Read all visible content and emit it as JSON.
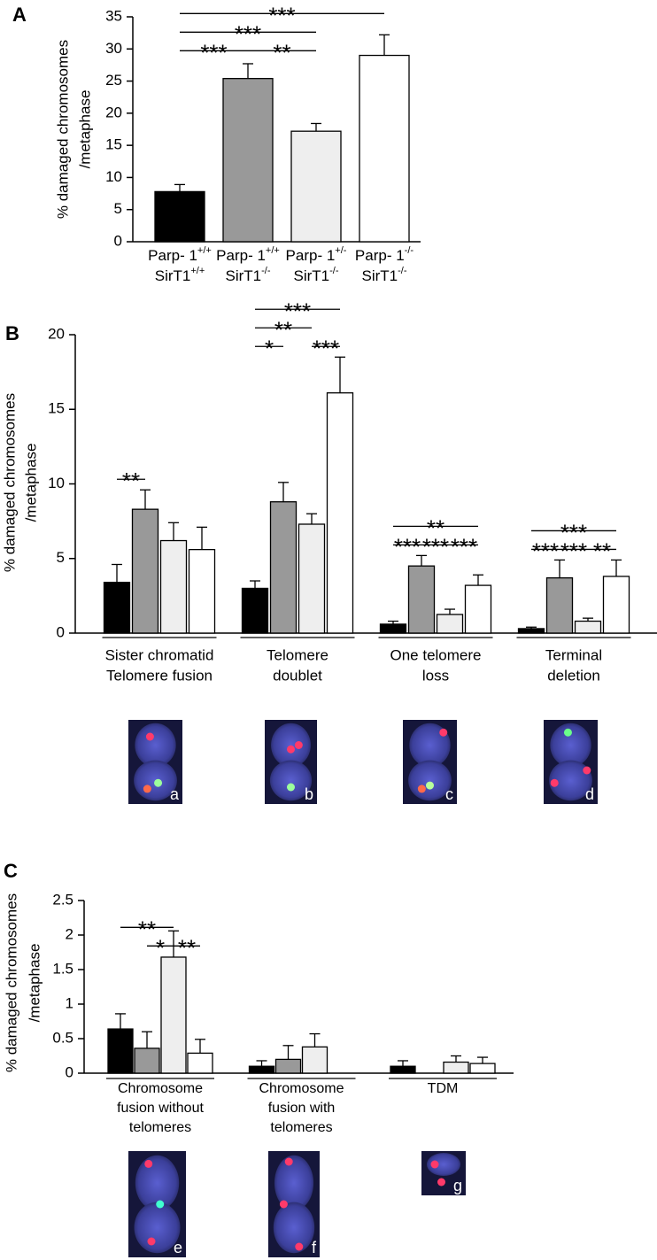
{
  "chart_data": [
    {
      "type": "bar",
      "panel": "A",
      "y_label": [
        "% damaged chromosomes",
        "/metaphase"
      ],
      "categories": [
        [
          {
            "text": "Parp- 1",
            "sup": "+/+"
          },
          {
            "text": "SirT1",
            "sup": "+/+"
          }
        ],
        [
          {
            "text": "Parp- 1",
            "sup": "+/+"
          },
          {
            "text": "SirT1",
            "sup": "-/-"
          }
        ],
        [
          {
            "text": "Parp- 1",
            "sup": "+/-"
          },
          {
            "text": "SirT1",
            "sup": "-/-"
          }
        ],
        [
          {
            "text": "Parp- 1",
            "sup": "-/-"
          },
          {
            "text": "SirT1",
            "sup": "-/-"
          }
        ]
      ],
      "values": [
        7.8,
        25.4,
        17.2,
        29.0
      ],
      "errors": [
        1.1,
        2.3,
        1.2,
        3.2
      ],
      "colors": [
        "#000000",
        "#999999",
        "#eeeeee",
        "#ffffff"
      ],
      "ylim": [
        0,
        35
      ],
      "yticks": [
        0,
        5,
        10,
        15,
        20,
        25,
        30,
        35
      ],
      "annotations": [
        {
          "text": "***",
          "from": 0,
          "to": 1
        },
        {
          "text": "**",
          "from": 1,
          "to": 2
        },
        {
          "text": "***",
          "from": 0,
          "to": 2
        },
        {
          "text": "***",
          "from": 0,
          "to": 3
        }
      ]
    },
    {
      "type": "grouped_bar",
      "panel": "B",
      "y_label": [
        "% damaged chromosomes",
        "/metaphase"
      ],
      "categories": [
        [
          "Sister chromatid",
          "Telomere fusion"
        ],
        [
          "Telomere",
          "doublet"
        ],
        [
          "One telomere",
          "loss"
        ],
        [
          "Terminal",
          "deletion"
        ]
      ],
      "series": [
        {
          "color": "#000000",
          "values": [
            3.4,
            3.0,
            0.6,
            0.3
          ],
          "errors": [
            1.2,
            0.5,
            0.2,
            0.1
          ]
        },
        {
          "color": "#999999",
          "values": [
            8.3,
            8.8,
            4.5,
            3.7
          ],
          "errors": [
            1.3,
            1.3,
            0.7,
            1.2
          ]
        },
        {
          "color": "#eeeeee",
          "values": [
            6.2,
            7.3,
            1.25,
            0.8
          ],
          "errors": [
            1.2,
            0.7,
            0.35,
            0.2
          ]
        },
        {
          "color": "#ffffff",
          "values": [
            5.6,
            16.1,
            3.2,
            3.8
          ],
          "errors": [
            1.5,
            2.4,
            0.7,
            1.1
          ]
        }
      ],
      "ylim": [
        0,
        20
      ],
      "yticks": [
        0,
        5,
        10,
        15,
        20
      ],
      "annotations": [
        {
          "text": "**",
          "group": 0,
          "from": 0,
          "to": 1
        },
        {
          "text": "*",
          "group": 1,
          "from": 0,
          "to": 1
        },
        {
          "text": "**",
          "group": 1,
          "from": 0,
          "to": 2
        },
        {
          "text": "***",
          "group": 1,
          "from": 2,
          "to": 3
        },
        {
          "text": "***",
          "group": 1,
          "from": 0,
          "to": 3
        },
        {
          "text": "***",
          "group": 2,
          "from": 0,
          "to": 1
        },
        {
          "text": "***",
          "group": 2,
          "from": 1,
          "to": 2
        },
        {
          "text": "***",
          "group": 2,
          "from": 2,
          "to": 3
        },
        {
          "text": "**",
          "group": 2,
          "from": 0,
          "to": 3
        },
        {
          "text": "***",
          "group": 3,
          "from": 0,
          "to": 1
        },
        {
          "text": "***",
          "group": 3,
          "from": 1,
          "to": 2
        },
        {
          "text": "**",
          "group": 3,
          "from": 2,
          "to": 3
        },
        {
          "text": "***",
          "group": 3,
          "from": 0,
          "to": 3
        }
      ],
      "image_labels": [
        "a",
        "b",
        "c",
        "d"
      ]
    },
    {
      "type": "grouped_bar",
      "panel": "C",
      "y_label": [
        "% damaged chromosomes",
        "/metaphase"
      ],
      "categories": [
        [
          "Chromosome",
          "fusion without",
          "telomeres"
        ],
        [
          "Chromosome",
          "fusion with",
          "telomeres"
        ],
        [
          "TDM"
        ]
      ],
      "series": [
        {
          "color": "#000000",
          "values": [
            0.64,
            0.1,
            0.1
          ],
          "errors": [
            0.22,
            0.08,
            0.08
          ]
        },
        {
          "color": "#999999",
          "values": [
            0.36,
            0.2,
            0
          ],
          "errors": [
            0.24,
            0.2,
            null
          ]
        },
        {
          "color": "#eeeeee",
          "values": [
            1.68,
            0.38,
            0.16
          ],
          "errors": [
            0.38,
            0.19,
            0.09
          ]
        },
        {
          "color": "#ffffff",
          "values": [
            0.29,
            0,
            0.14
          ],
          "errors": [
            0.2,
            null,
            0.09
          ]
        }
      ],
      "ylim": [
        0,
        2.5
      ],
      "yticks": [
        0,
        0.5,
        1,
        1.5,
        2,
        2.5
      ],
      "annotations": [
        {
          "text": "*",
          "group": 0,
          "from": 1,
          "to": 2
        },
        {
          "text": "**",
          "group": 0,
          "from": 2,
          "to": 3
        },
        {
          "text": "**",
          "group": 0,
          "from": 0,
          "to": 2
        }
      ],
      "image_labels": [
        "e",
        "f",
        "g"
      ]
    }
  ]
}
